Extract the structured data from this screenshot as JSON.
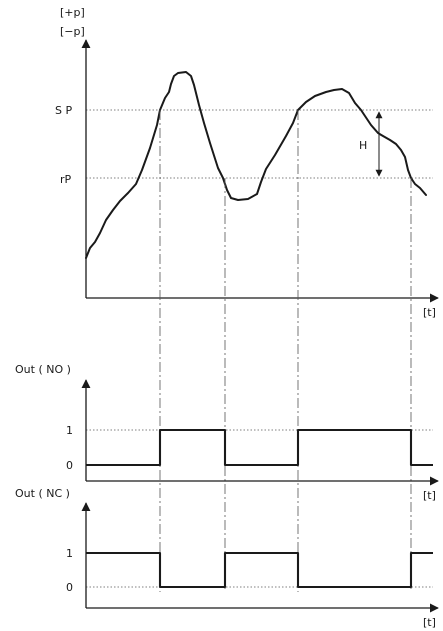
{
  "top_chart": {
    "y_label_top": "[+p]",
    "y_label_bottom": "[−p]",
    "x_label": "[t]",
    "sp_label": "S P",
    "rp_label": "rP",
    "hysteresis_label": "H"
  },
  "no_chart": {
    "y_label": "Out ( NO )",
    "level_1": "1",
    "level_0": "0",
    "x_label": "[t]"
  },
  "nc_chart": {
    "y_label": "Out ( NC )",
    "level_1": "1",
    "level_0": "0",
    "x_label": "[t]"
  },
  "colors": {
    "line": "#1a1a1a",
    "guide": "#555555",
    "background": "#ffffff"
  }
}
